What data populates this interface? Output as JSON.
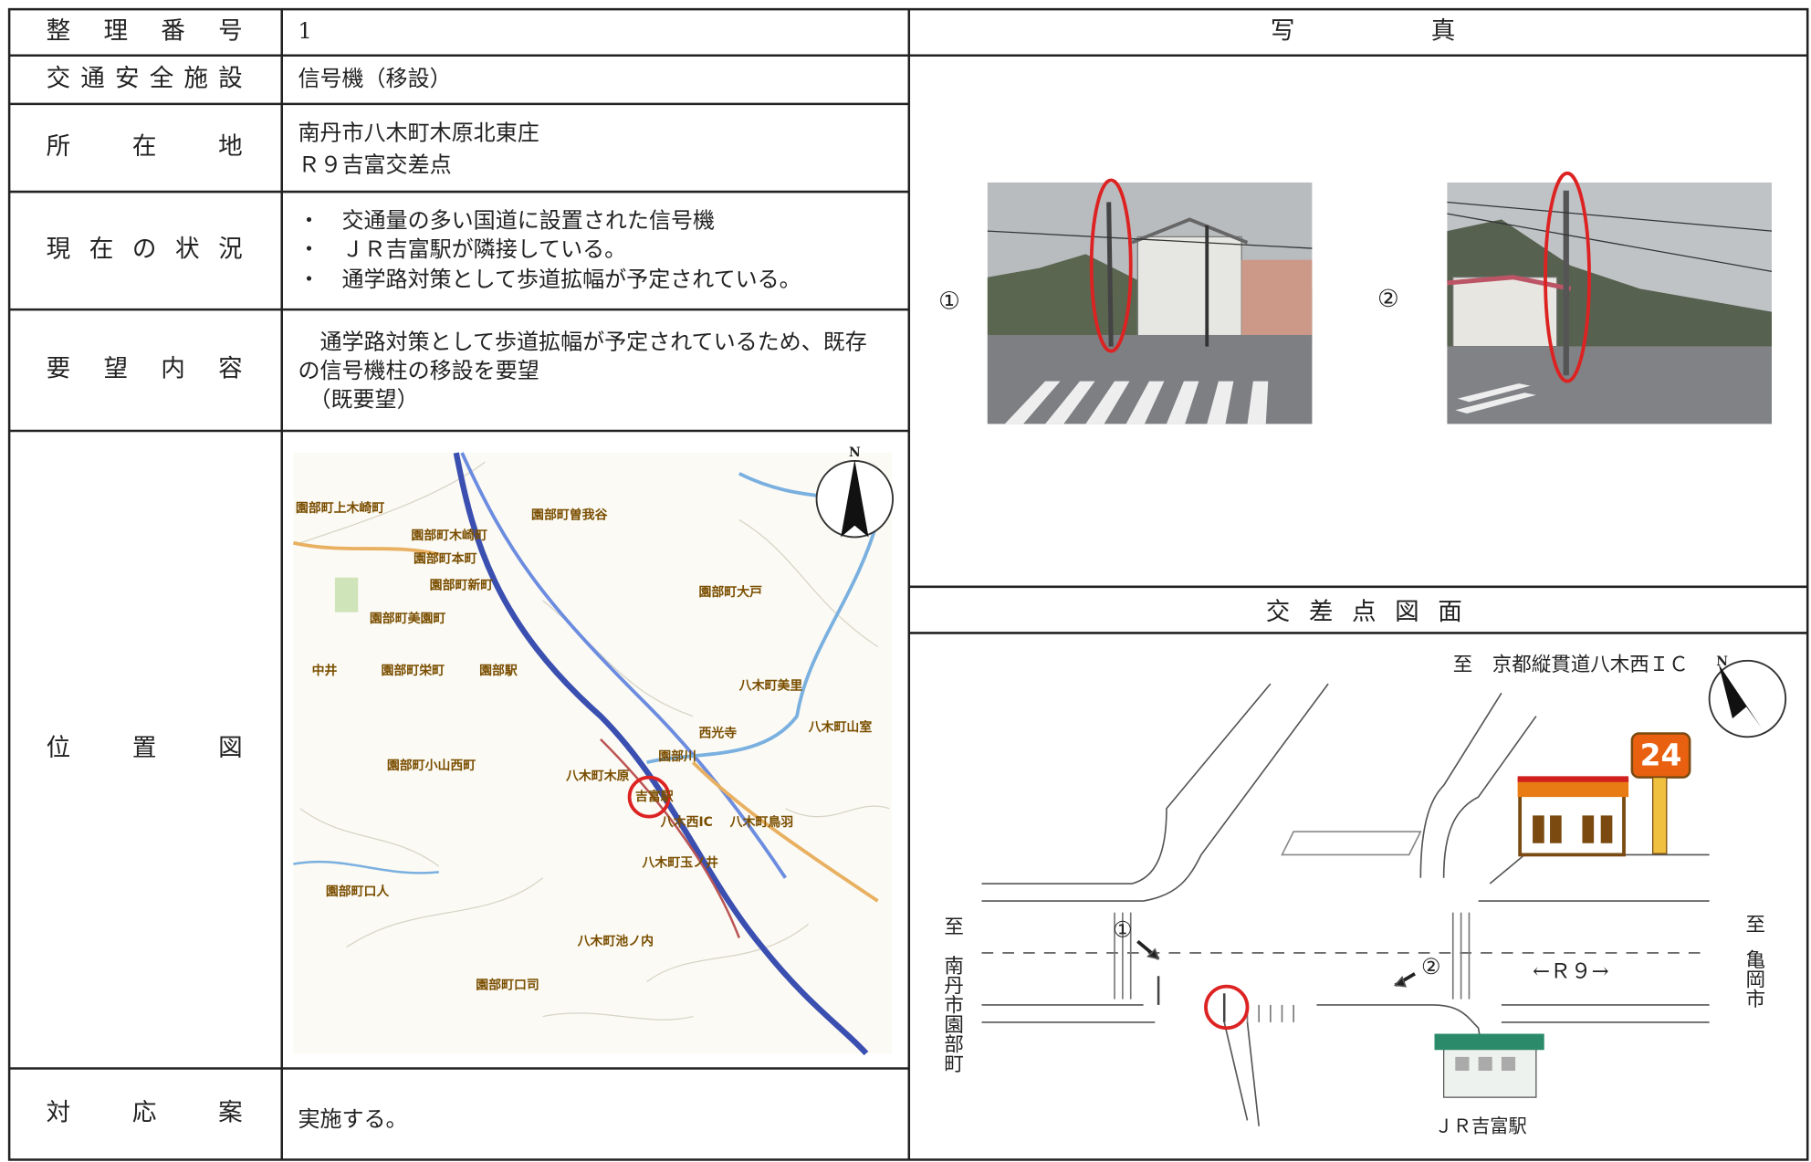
{
  "rows": [
    {
      "label": "整理番号",
      "content": [
        "1"
      ]
    },
    {
      "label": "交通安全施設",
      "content": [
        "信号機（移設）"
      ]
    },
    {
      "label": "所在地",
      "content": [
        "南丹市八木町木原北東庄",
        "Ｒ９吉富交差点"
      ]
    },
    {
      "label": "現在の状況",
      "content": [
        "・　交通量の多い国道に設置された信号機",
        "・　ＪＲ吉富駅が隣接している。",
        "・　通学路対策として歩道拡幅が予定されている。"
      ]
    },
    {
      "label": "要望内容",
      "content": [
        "　通学路対策として歩道拡幅が予定されているため、既存",
        "の信号機柱の移設を要望",
        "　（既要望）"
      ]
    },
    {
      "label": "位置図",
      "content": []
    },
    {
      "label": "対応案",
      "content": [
        "実施する。"
      ]
    }
  ],
  "location_map": {
    "north": "N",
    "place_labels": [
      "園部町上木崎町",
      "園部町曽我谷",
      "園部町木崎町",
      "園部町本町",
      "園部町新町",
      "園部町美園町",
      "中井",
      "園部町栄町",
      "園部駅",
      "園部町大戸",
      "八木町美里",
      "八木町山室",
      "園部町小山西町",
      "八木町木原",
      "吉富駅",
      "八木西IC",
      "八木町鳥羽",
      "八木町玉ノ井",
      "園部町口人",
      "八木町池ノ内",
      "園部町口司",
      "園部川",
      "西光寺"
    ]
  },
  "photos": {
    "title": "写真",
    "items": [
      {
        "label": "①"
      },
      {
        "label": "②"
      }
    ]
  },
  "intersection": {
    "title": "交差点図面",
    "north_label": "至　京都縦貫道八木西ＩＣ",
    "west_label": [
      "至",
      "南丹市園部町"
    ],
    "east_label": [
      "至",
      "亀岡市"
    ],
    "road_label": "←Ｒ９→",
    "markers": [
      "①",
      "②"
    ],
    "station": "ＪＲ吉富駅",
    "store_sign": "24",
    "north": "N"
  }
}
